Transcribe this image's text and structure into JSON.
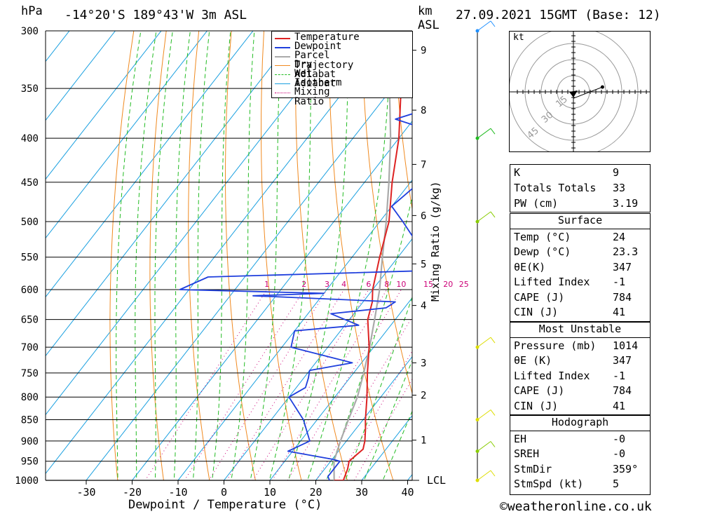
{
  "header": {
    "hpa_unit": "hPa",
    "location": "-14°20'S  189°43'W  3m  ASL",
    "km_unit": "km",
    "asl_unit": "ASL",
    "datetime": "27.09.2021  15GMT  (Base: 12)"
  },
  "axes": {
    "x_title": "Dewpoint / Temperature (°C)",
    "y_right_title": "Mixing Ratio (g/kg)",
    "lcl_label": "LCL"
  },
  "chart_data": {
    "type": "skew-t log-p",
    "pressure_levels": [
      300,
      350,
      400,
      450,
      500,
      550,
      600,
      650,
      700,
      750,
      800,
      850,
      900,
      950,
      1000
    ],
    "temperature_ticks": [
      -30,
      -20,
      -10,
      0,
      10,
      20,
      30,
      40
    ],
    "altitude_km_ticks": [
      {
        "km": 9,
        "p": 316
      },
      {
        "km": 8,
        "p": 371
      },
      {
        "km": 7,
        "p": 429
      },
      {
        "km": 6,
        "p": 492
      },
      {
        "km": 5,
        "p": 560
      },
      {
        "km": 4,
        "p": 626
      },
      {
        "km": 3,
        "p": 730
      },
      {
        "km": 2,
        "p": 796
      },
      {
        "km": 1,
        "p": 898
      }
    ],
    "mixing_ratio_labels": [
      1,
      2,
      3,
      4,
      6,
      8,
      10,
      15,
      20,
      25
    ],
    "temperature_series": [
      {
        "p": 1005,
        "t": 24
      },
      {
        "p": 1000,
        "t": 26
      },
      {
        "p": 970,
        "t": 25
      },
      {
        "p": 950,
        "t": 24
      },
      {
        "p": 920,
        "t": 25
      },
      {
        "p": 900,
        "t": 24
      },
      {
        "p": 870,
        "t": 22
      },
      {
        "p": 850,
        "t": 20.5
      },
      {
        "p": 800,
        "t": 17
      },
      {
        "p": 750,
        "t": 13
      },
      {
        "p": 700,
        "t": 9
      },
      {
        "p": 650,
        "t": 4
      },
      {
        "p": 620,
        "t": 2
      },
      {
        "p": 600,
        "t": 0
      },
      {
        "p": 550,
        "t": -4
      },
      {
        "p": 500,
        "t": -8
      },
      {
        "p": 450,
        "t": -14
      },
      {
        "p": 400,
        "t": -20
      },
      {
        "p": 350,
        "t": -28
      },
      {
        "p": 300,
        "t": -38
      }
    ],
    "dewpoint_series": [
      {
        "p": 1005,
        "t": 23
      },
      {
        "p": 990,
        "t": 22
      },
      {
        "p": 950,
        "t": 22
      },
      {
        "p": 945,
        "t": 20
      },
      {
        "p": 925,
        "t": 9
      },
      {
        "p": 900,
        "t": 12
      },
      {
        "p": 850,
        "t": 7
      },
      {
        "p": 800,
        "t": 0
      },
      {
        "p": 780,
        "t": 2
      },
      {
        "p": 760,
        "t": 1
      },
      {
        "p": 745,
        "t": 0
      },
      {
        "p": 730,
        "t": 8
      },
      {
        "p": 700,
        "t": -8
      },
      {
        "p": 670,
        "t": -10
      },
      {
        "p": 660,
        "t": 3
      },
      {
        "p": 640,
        "t": -5
      },
      {
        "p": 630,
        "t": 6
      },
      {
        "p": 620,
        "t": 7
      },
      {
        "p": 610,
        "t": -25
      },
      {
        "p": 606,
        "t": -10
      },
      {
        "p": 604,
        "t": -20
      },
      {
        "p": 600,
        "t": -42
      },
      {
        "p": 580,
        "t": -38
      },
      {
        "p": 570,
        "t": 10
      },
      {
        "p": 550,
        "t": 10
      },
      {
        "p": 540,
        "t": 4
      },
      {
        "p": 500,
        "t": -5
      },
      {
        "p": 480,
        "t": -10
      },
      {
        "p": 450,
        "t": -8
      },
      {
        "p": 420,
        "t": -10
      },
      {
        "p": 400,
        "t": -8
      },
      {
        "p": 380,
        "t": -24
      },
      {
        "p": 350,
        "t": -8
      },
      {
        "p": 340,
        "t": -20
      },
      {
        "p": 320,
        "t": -17
      },
      {
        "p": 300,
        "t": -20
      }
    ],
    "parcel_series": [
      {
        "p": 1005,
        "t": 24
      },
      {
        "p": 950,
        "t": 20.7
      },
      {
        "p": 900,
        "t": 18.7
      },
      {
        "p": 850,
        "t": 16.8
      },
      {
        "p": 800,
        "t": 14.9
      },
      {
        "p": 750,
        "t": 12.2
      },
      {
        "p": 700,
        "t": 9.1
      },
      {
        "p": 650,
        "t": 5.5
      },
      {
        "p": 600,
        "t": 1.5
      },
      {
        "p": 550,
        "t": -3.4
      },
      {
        "p": 500,
        "t": -8.6
      },
      {
        "p": 450,
        "t": -14.7
      },
      {
        "p": 400,
        "t": -21.8
      },
      {
        "p": 350,
        "t": -30.5
      },
      {
        "p": 300,
        "t": -40
      }
    ],
    "legend": [
      "Temperature",
      "Dewpoint",
      "Parcel Trajectory",
      "Dry Adiabat",
      "Wet Adiabat",
      "Isotherm",
      "Mixing Ratio"
    ],
    "wind_barbs": [
      {
        "p": 300,
        "color": "#2090ff"
      },
      {
        "p": 400,
        "color": "#22bb22"
      },
      {
        "p": 500,
        "color": "#88cc00"
      },
      {
        "p": 700,
        "color": "#dddd00"
      },
      {
        "p": 850,
        "color": "#dddd00"
      },
      {
        "p": 925,
        "color": "#88cc00"
      },
      {
        "p": 1000,
        "color": "#dddd00"
      }
    ],
    "colors": {
      "temperature": "#dd2222",
      "dewpoint": "#1f3fdd",
      "parcel": "#aaaaaa",
      "dry_adiabat": "#f08a20",
      "wet_adiabat": "#22bb22",
      "isotherm": "#1aa0e0",
      "mixing_ratio": "#cc0077"
    }
  },
  "hodograph": {
    "unit": "kt",
    "ring_labels": [
      "15",
      "30",
      "45"
    ],
    "points": [
      {
        "u": 0,
        "v": -4
      },
      {
        "u": 18,
        "v": 3
      }
    ]
  },
  "indices": {
    "rows": [
      {
        "label": "K",
        "value": "9"
      },
      {
        "label": "Totals Totals",
        "value": "33"
      },
      {
        "label": "PW (cm)",
        "value": "3.19"
      }
    ]
  },
  "surface": {
    "title": "Surface",
    "rows": [
      {
        "label": "Temp (°C)",
        "value": "24"
      },
      {
        "label": "Dewp (°C)",
        "value": "23.3"
      },
      {
        "label": "θE(K)",
        "value": "347"
      },
      {
        "label": "Lifted Index",
        "value": "-1"
      },
      {
        "label": "CAPE (J)",
        "value": "784"
      },
      {
        "label": "CIN (J)",
        "value": "41"
      }
    ]
  },
  "most_unstable": {
    "title": "Most Unstable",
    "rows": [
      {
        "label": "Pressure (mb)",
        "value": "1014"
      },
      {
        "label": "θE (K)",
        "value": "347"
      },
      {
        "label": "Lifted Index",
        "value": "-1"
      },
      {
        "label": "CAPE (J)",
        "value": "784"
      },
      {
        "label": "CIN (J)",
        "value": "41"
      }
    ]
  },
  "hodograph_table": {
    "title": "Hodograph",
    "rows": [
      {
        "label": "EH",
        "value": "-0"
      },
      {
        "label": "SREH",
        "value": "-0"
      },
      {
        "label": "StmDir",
        "value": "359°"
      },
      {
        "label": "StmSpd (kt)",
        "value": "5"
      }
    ]
  },
  "footer": {
    "copyright_symbol": "©",
    "site": "weatheronline.co.uk"
  }
}
